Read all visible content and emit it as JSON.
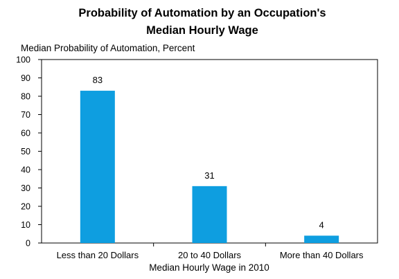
{
  "chart_data": {
    "type": "bar",
    "title_lines": [
      "Probability of Automation by an Occupation's",
      "Median Hourly Wage"
    ],
    "ylabel": "Median Probability of Automation, Percent",
    "xlabel": "Median Hourly Wage in 2010",
    "categories": [
      "Less than 20 Dollars",
      "20 to 40 Dollars",
      "More than 40 Dollars"
    ],
    "values": [
      83,
      31,
      4
    ],
    "data_labels": [
      "83",
      "31",
      "4"
    ],
    "ylim": [
      0,
      100
    ],
    "yticks": [
      0,
      10,
      20,
      30,
      40,
      50,
      60,
      70,
      80,
      90,
      100
    ],
    "bar_color": "#0e9ee0",
    "grid": false,
    "legend": "none"
  }
}
